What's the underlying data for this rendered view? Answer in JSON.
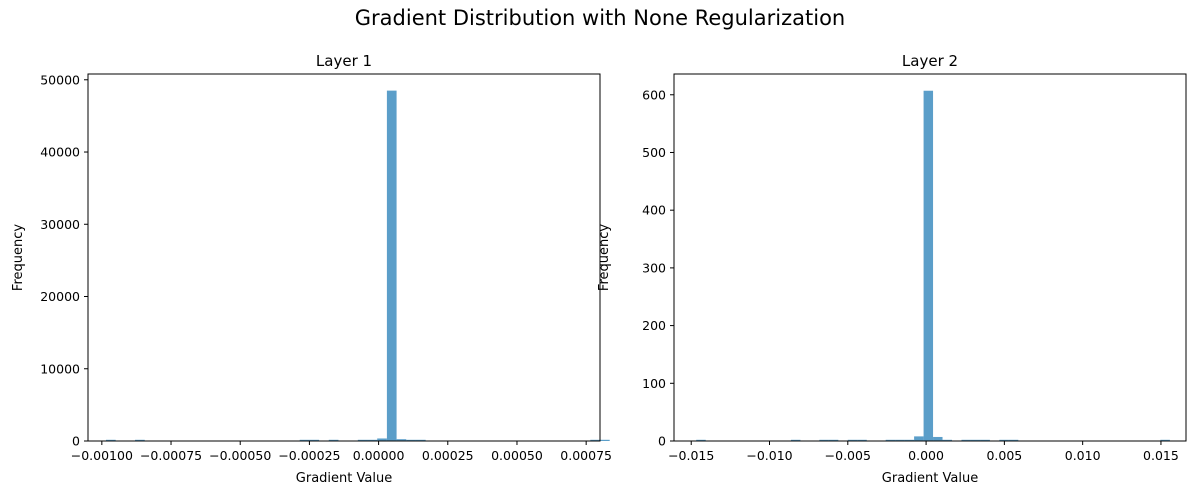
{
  "figure": {
    "title": "Gradient Distribution with None Regularization"
  },
  "chart_data": [
    {
      "type": "bar",
      "title": "Layer 1",
      "xlabel": "Gradient Value",
      "ylabel": "Frequency",
      "xlim": [
        -0.00105,
        0.0008
      ],
      "ylim": [
        0,
        50800
      ],
      "xticks": [
        -0.001,
        -0.00075,
        -0.0005,
        -0.00025,
        0.0,
        0.00025,
        0.0005,
        0.00075
      ],
      "xtick_labels": [
        "−0.00100",
        "−0.00075",
        "−0.00050",
        "−0.00025",
        "0.00000",
        "0.00025",
        "0.00050",
        "0.00075"
      ],
      "yticks": [
        0,
        10000,
        20000,
        30000,
        40000,
        50000
      ],
      "ytick_labels": [
        "0",
        "10000",
        "20000",
        "30000",
        "40000",
        "50000"
      ],
      "bin_start": -0.000985,
      "bin_width": 3.5e-05,
      "values": [
        30,
        0,
        0,
        30,
        0,
        0,
        0,
        0,
        0,
        0,
        0,
        0,
        0,
        0,
        0,
        0,
        0,
        0,
        0,
        0,
        30,
        30,
        0,
        30,
        0,
        0,
        30,
        30,
        30,
        0,
        0,
        0,
        150,
        0,
        0,
        0,
        0,
        0,
        0,
        0,
        0,
        0,
        0,
        0,
        0,
        0,
        0,
        0,
        0,
        0,
        30,
        30
      ],
      "peak_bin_index": 29,
      "peak_value": 48500,
      "near_peak": [
        {
          "bin": 28,
          "value": 350
        },
        {
          "bin": 30,
          "value": 250
        },
        {
          "bin": 31,
          "value": 80
        },
        {
          "bin": 27,
          "value": 120
        }
      ],
      "color": "#5b9ec9",
      "grid": false
    },
    {
      "type": "bar",
      "title": "Layer 2",
      "xlabel": "Gradient Value",
      "ylabel": "Frequency",
      "xlim": [
        -0.0161,
        0.0166
      ],
      "ylim": [
        0,
        636
      ],
      "xticks": [
        -0.015,
        -0.01,
        -0.005,
        0.0,
        0.005,
        0.01,
        0.015
      ],
      "xtick_labels": [
        "−0.015",
        "−0.010",
        "−0.005",
        "0.000",
        "0.005",
        "0.010",
        "0.015"
      ],
      "yticks": [
        0,
        100,
        200,
        300,
        400,
        500,
        600
      ],
      "ytick_labels": [
        "0",
        "100",
        "200",
        "300",
        "400",
        "500",
        "600"
      ],
      "bin_start": -0.01468,
      "bin_width": 0.000605,
      "values": [
        1,
        0,
        0,
        0,
        0,
        0,
        0,
        0,
        0,
        0,
        1,
        0,
        0,
        1,
        1,
        0,
        1,
        1,
        0,
        0,
        1,
        1,
        1,
        2,
        0,
        0,
        1,
        0,
        1,
        1,
        1,
        0,
        1,
        1,
        0,
        0,
        0,
        0,
        0,
        0,
        0,
        0,
        0,
        0,
        0,
        0,
        0,
        0,
        0,
        1
      ],
      "peak_bin_index": 24,
      "peak_value": 607,
      "near_peak": [
        {
          "bin": 23,
          "value": 8
        },
        {
          "bin": 25,
          "value": 7
        }
      ],
      "color": "#5b9ec9",
      "grid": false
    }
  ]
}
